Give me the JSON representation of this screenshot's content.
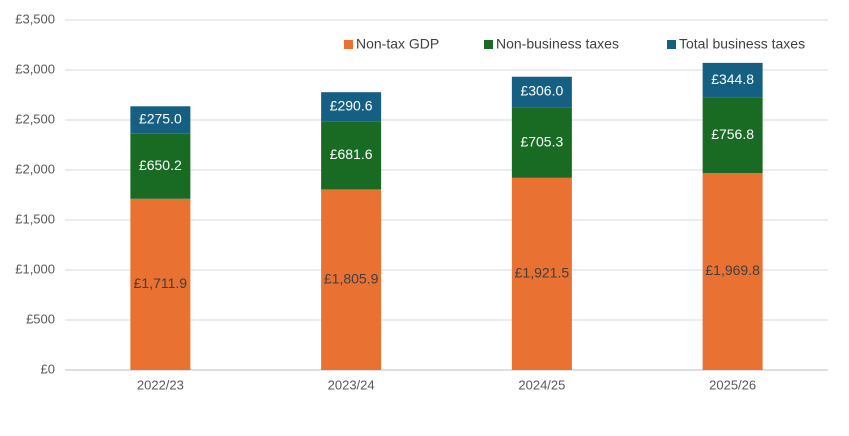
{
  "chart_data": {
    "type": "bar",
    "stacked": true,
    "categories": [
      "2022/23",
      "2023/24",
      "2024/25",
      "2025/26"
    ],
    "series": [
      {
        "name": "Non-tax GDP",
        "color": "#e97132",
        "values": [
          1711.9,
          1805.9,
          1921.5,
          1969.8
        ],
        "value_labels": [
          "£1,711.9",
          "£1,805.9",
          "£1,921.5",
          "£1,969.8"
        ]
      },
      {
        "name": "Non-business taxes",
        "color": "#196b24",
        "values": [
          650.2,
          681.6,
          705.3,
          756.8
        ],
        "value_labels": [
          "£650.2",
          "£681.6",
          "£705.3",
          "£756.8"
        ]
      },
      {
        "name": "Total business taxes",
        "color": "#156082",
        "values": [
          275.0,
          290.6,
          306.0,
          344.8
        ],
        "value_labels": [
          "£275.0",
          "£290.6",
          "£306.0",
          "£344.8"
        ]
      }
    ],
    "ylim": [
      0,
      3500
    ],
    "yticks": [
      {
        "value": 0,
        "label": "£0"
      },
      {
        "value": 500,
        "label": "£500"
      },
      {
        "value": 1000,
        "label": "£1,000"
      },
      {
        "value": 1500,
        "label": "£1,500"
      },
      {
        "value": 2000,
        "label": "£2,000"
      },
      {
        "value": 2500,
        "label": "£2,500"
      },
      {
        "value": 3000,
        "label": "£3,000"
      },
      {
        "value": 3500,
        "label": "£3,500"
      }
    ],
    "grid": true,
    "legend": "top-right"
  }
}
